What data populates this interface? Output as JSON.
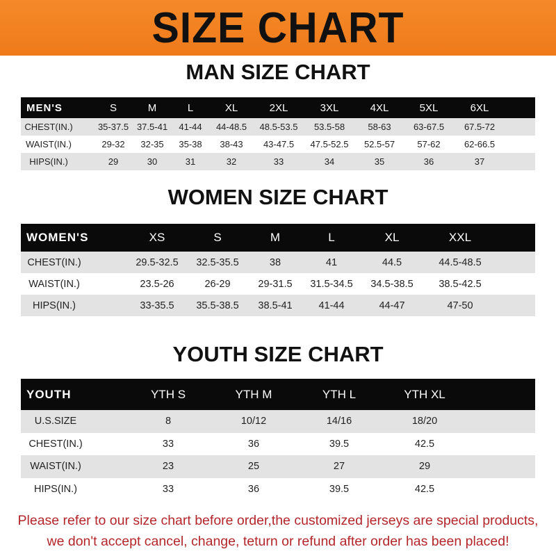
{
  "title": "SIZE CHART",
  "men": {
    "title": "MAN SIZE CHART",
    "header": [
      "MEN'S",
      "S",
      "M",
      "L",
      "XL",
      "2XL",
      "3XL",
      "4XL",
      "5XL",
      "6XL"
    ],
    "rows": [
      [
        "CHEST(IN.)",
        "35-37.5",
        "37.5-41",
        "41-44",
        "44-48.5",
        "48.5-53.5",
        "53.5-58",
        "58-63",
        "63-67.5",
        "67.5-72"
      ],
      [
        "WAIST(IN.)",
        "29-32",
        "32-35",
        "35-38",
        "38-43",
        "43-47.5",
        "47.5-52.5",
        "52.5-57",
        "57-62",
        "62-66.5"
      ],
      [
        "HIPS(IN.)",
        "29",
        "30",
        "31",
        "32",
        "33",
        "34",
        "35",
        "36",
        "37"
      ]
    ]
  },
  "women": {
    "title": "WOMEN SIZE CHART",
    "header": [
      "WOMEN'S",
      "XS",
      "S",
      "M",
      "L",
      "XL",
      "XXL"
    ],
    "rows": [
      [
        "CHEST(IN.)",
        "29.5-32.5",
        "32.5-35.5",
        "38",
        "41",
        "44.5",
        "44.5-48.5"
      ],
      [
        "WAIST(IN.)",
        "23.5-26",
        "26-29",
        "29-31.5",
        "31.5-34.5",
        "34.5-38.5",
        "38.5-42.5"
      ],
      [
        "HIPS(IN.)",
        "33-35.5",
        "35.5-38.5",
        "38.5-41",
        "41-44",
        "44-47",
        "47-50"
      ]
    ]
  },
  "youth": {
    "title": "YOUTH SIZE CHART",
    "header": [
      "YOUTH",
      "YTH S",
      "YTH M",
      "YTH L",
      "YTH XL"
    ],
    "rows": [
      [
        "U.S.SIZE",
        "8",
        "10/12",
        "14/16",
        "18/20"
      ],
      [
        "CHEST(IN.)",
        "33",
        "36",
        "39.5",
        "42.5"
      ],
      [
        "WAIST(IN.)",
        "23",
        "25",
        "27",
        "29"
      ],
      [
        "HIPS(IN.)",
        "33",
        "36",
        "39.5",
        "42.5"
      ]
    ]
  },
  "notice": {
    "line1": "Please refer to our size chart before order,the customized jerseys are special products,",
    "line2": "we don't accept cancel, change, teturn or refund after order has been placed!"
  },
  "colors": {
    "banner": "#f07c1e",
    "header_row": "#0a0a0a",
    "stripe": "#e3e3e3",
    "notice_text": "#b3262a"
  }
}
